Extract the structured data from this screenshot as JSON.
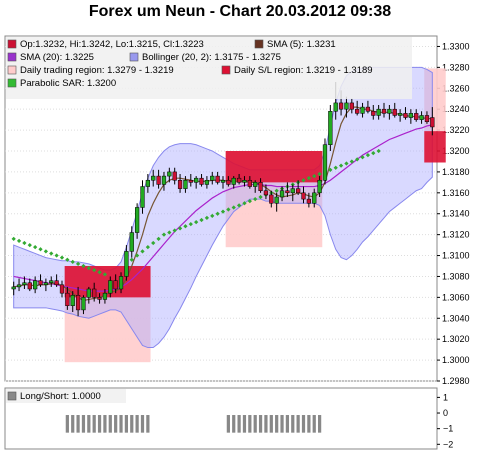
{
  "chart_data": [
    {
      "type": "candlestick",
      "title": "Forex um Neun - Chart 20.03.2012 09:38",
      "ylim": [
        1.298,
        1.331
      ],
      "y_ticks": [
        "1.3300",
        "1.3280",
        "1.3260",
        "1.3240",
        "1.3220",
        "1.3200",
        "1.3180",
        "1.3160",
        "1.3140",
        "1.3120",
        "1.3100",
        "1.3080",
        "1.3060",
        "1.3040",
        "1.3020",
        "1.3000",
        "1.2980"
      ],
      "y_tick_values": [
        1.33,
        1.328,
        1.326,
        1.324,
        1.322,
        1.32,
        1.318,
        1.316,
        1.314,
        1.312,
        1.31,
        1.308,
        1.306,
        1.304,
        1.302,
        1.3,
        1.298
      ],
      "grid": true,
      "legend_position": "top-left",
      "legend": [
        {
          "label": "Op:1.3232, Hi:1.3242, Lo:1.3215, Cl:1.3223",
          "color": "#cc1133"
        },
        {
          "label": "SMA (5): 1.3231",
          "color": "#663322"
        },
        {
          "label": "SMA (20): 1.3225",
          "color": "#9933cc"
        },
        {
          "label": "Bollinger (20, 2): 1.3175 - 1.3275",
          "color": "#9999ee"
        },
        {
          "label": "Daily trading region: 1.3279 - 1.3219",
          "color": "#ffcccc"
        },
        {
          "label": "Daily S/L region: 1.3219 - 1.3189",
          "color": "#dd1133"
        },
        {
          "label": "Parabolic SAR: 1.3200",
          "color": "#33bb33"
        }
      ],
      "candles": [
        [
          1.3068,
          1.3075,
          1.3062,
          1.307
        ],
        [
          1.307,
          1.3078,
          1.3066,
          1.3072
        ],
        [
          1.3072,
          1.308,
          1.3068,
          1.3074
        ],
        [
          1.3074,
          1.3078,
          1.3066,
          1.3068
        ],
        [
          1.3068,
          1.308,
          1.3064,
          1.3076
        ],
        [
          1.3076,
          1.3082,
          1.307,
          1.3072
        ],
        [
          1.3072,
          1.3078,
          1.3066,
          1.3074
        ],
        [
          1.3074,
          1.308,
          1.307,
          1.3076
        ],
        [
          1.3076,
          1.3082,
          1.307,
          1.3072
        ],
        [
          1.3072,
          1.3076,
          1.306,
          1.3064
        ],
        [
          1.3064,
          1.307,
          1.3048,
          1.3052
        ],
        [
          1.3052,
          1.3066,
          1.3046,
          1.3062
        ],
        [
          1.3062,
          1.307,
          1.3042,
          1.3048
        ],
        [
          1.3048,
          1.3062,
          1.3044,
          1.306
        ],
        [
          1.306,
          1.307,
          1.3054,
          1.3068
        ],
        [
          1.3068,
          1.3074,
          1.3056,
          1.306
        ],
        [
          1.306,
          1.3064,
          1.3054,
          1.3058
        ],
        [
          1.3058,
          1.3068,
          1.3054,
          1.3064
        ],
        [
          1.3064,
          1.308,
          1.306,
          1.3076
        ],
        [
          1.3076,
          1.3082,
          1.3064,
          1.3068
        ],
        [
          1.3068,
          1.3084,
          1.3064,
          1.308
        ],
        [
          1.308,
          1.311,
          1.3076,
          1.3104
        ],
        [
          1.3104,
          1.3128,
          1.3098,
          1.3122
        ],
        [
          1.3122,
          1.315,
          1.3116,
          1.3146
        ],
        [
          1.3146,
          1.3172,
          1.314,
          1.3166
        ],
        [
          1.3166,
          1.3178,
          1.316,
          1.3172
        ],
        [
          1.3172,
          1.3182,
          1.3166,
          1.3176
        ],
        [
          1.3176,
          1.3182,
          1.3164,
          1.3168
        ],
        [
          1.3168,
          1.318,
          1.3162,
          1.3176
        ],
        [
          1.3176,
          1.3184,
          1.317,
          1.318
        ],
        [
          1.318,
          1.3184,
          1.3168,
          1.3172
        ],
        [
          1.3172,
          1.3178,
          1.316,
          1.3164
        ],
        [
          1.3164,
          1.3176,
          1.316,
          1.3172
        ],
        [
          1.3172,
          1.3178,
          1.3166,
          1.317
        ],
        [
          1.317,
          1.3176,
          1.3164,
          1.3174
        ],
        [
          1.3174,
          1.3178,
          1.3166,
          1.3168
        ],
        [
          1.3168,
          1.3176,
          1.3164,
          1.3172
        ],
        [
          1.3172,
          1.318,
          1.3168,
          1.3176
        ],
        [
          1.3176,
          1.318,
          1.3168,
          1.317
        ],
        [
          1.317,
          1.3176,
          1.3164,
          1.3172
        ],
        [
          1.3172,
          1.3176,
          1.3166,
          1.3168
        ],
        [
          1.3168,
          1.3176,
          1.3164,
          1.3174
        ],
        [
          1.3174,
          1.3178,
          1.3168,
          1.317
        ],
        [
          1.317,
          1.3176,
          1.3166,
          1.3172
        ],
        [
          1.3172,
          1.3176,
          1.3164,
          1.3166
        ],
        [
          1.3166,
          1.3172,
          1.316,
          1.317
        ],
        [
          1.317,
          1.3174,
          1.316,
          1.3162
        ],
        [
          1.3162,
          1.3168,
          1.3154,
          1.3158
        ],
        [
          1.3158,
          1.3162,
          1.3146,
          1.315
        ],
        [
          1.315,
          1.316,
          1.3142,
          1.3156
        ],
        [
          1.3156,
          1.3166,
          1.3152,
          1.3162
        ],
        [
          1.3162,
          1.317,
          1.3156,
          1.316
        ],
        [
          1.316,
          1.3168,
          1.3152,
          1.3164
        ],
        [
          1.3164,
          1.3172,
          1.3158,
          1.316
        ],
        [
          1.316,
          1.3166,
          1.315,
          1.3154
        ],
        [
          1.3154,
          1.316,
          1.3146,
          1.315
        ],
        [
          1.315,
          1.3164,
          1.3146,
          1.316
        ],
        [
          1.316,
          1.3176,
          1.3156,
          1.3172
        ],
        [
          1.3172,
          1.3212,
          1.3168,
          1.3206
        ],
        [
          1.3206,
          1.3244,
          1.32,
          1.3238
        ],
        [
          1.3238,
          1.3266,
          1.323,
          1.3246
        ],
        [
          1.3246,
          1.3258,
          1.3234,
          1.324
        ],
        [
          1.324,
          1.3252,
          1.3232,
          1.3246
        ],
        [
          1.3246,
          1.325,
          1.3236,
          1.324
        ],
        [
          1.324,
          1.3248,
          1.3234,
          1.3236
        ],
        [
          1.3236,
          1.3246,
          1.3232,
          1.3242
        ],
        [
          1.3242,
          1.3248,
          1.3236,
          1.3238
        ],
        [
          1.3238,
          1.3244,
          1.323,
          1.3234
        ],
        [
          1.3234,
          1.3244,
          1.323,
          1.324
        ],
        [
          1.324,
          1.3246,
          1.3232,
          1.3236
        ],
        [
          1.3236,
          1.3244,
          1.323,
          1.324
        ],
        [
          1.324,
          1.3246,
          1.3232,
          1.3234
        ],
        [
          1.3234,
          1.324,
          1.3228,
          1.3236
        ],
        [
          1.3236,
          1.3242,
          1.323,
          1.3232
        ],
        [
          1.3232,
          1.324,
          1.3226,
          1.3236
        ],
        [
          1.3236,
          1.324,
          1.3228,
          1.323
        ],
        [
          1.323,
          1.3238,
          1.3226,
          1.3234
        ],
        [
          1.3234,
          1.3238,
          1.3226,
          1.3228
        ],
        [
          1.3232,
          1.3242,
          1.3215,
          1.3223
        ]
      ],
      "sma5": [
        1.307,
        1.3071,
        1.3072,
        1.3072,
        1.3071,
        1.3072,
        1.3072,
        1.3073,
        1.3074,
        1.3071,
        1.3068,
        1.3064,
        1.306,
        1.3057,
        1.3058,
        1.3059,
        1.306,
        1.3062,
        1.3065,
        1.3066,
        1.3069,
        1.3078,
        1.309,
        1.3104,
        1.312,
        1.3138,
        1.315,
        1.316,
        1.3168,
        1.3172,
        1.3174,
        1.3174,
        1.3173,
        1.3172,
        1.3171,
        1.3171,
        1.3171,
        1.3172,
        1.3172,
        1.3172,
        1.3171,
        1.3171,
        1.3171,
        1.3171,
        1.317,
        1.317,
        1.3168,
        1.3165,
        1.3161,
        1.3158,
        1.3156,
        1.3157,
        1.3158,
        1.316,
        1.3159,
        1.3157,
        1.3156,
        1.316,
        1.317,
        1.3188,
        1.3208,
        1.3226,
        1.3236,
        1.3242,
        1.3242,
        1.324,
        1.324,
        1.3238,
        1.3237,
        1.3237,
        1.3237,
        1.3236,
        1.3235,
        1.3234,
        1.3233,
        1.3233,
        1.3232,
        1.3231,
        1.3231
      ],
      "sma20": [
        1.308,
        1.3079,
        1.3078,
        1.3077,
        1.3076,
        1.3075,
        1.3074,
        1.3073,
        1.3072,
        1.3071,
        1.307,
        1.3069,
        1.3068,
        1.3067,
        1.3066,
        1.3066,
        1.3066,
        1.3066,
        1.3067,
        1.3068,
        1.307,
        1.3073,
        1.3077,
        1.3082,
        1.3087,
        1.3093,
        1.3099,
        1.3105,
        1.3111,
        1.3117,
        1.3123,
        1.3128,
        1.3133,
        1.3138,
        1.3143,
        1.3147,
        1.3151,
        1.3155,
        1.3158,
        1.3161,
        1.3163,
        1.3165,
        1.3166,
        1.3167,
        1.3168,
        1.3168,
        1.3168,
        1.3167,
        1.3167,
        1.3166,
        1.3166,
        1.3166,
        1.3166,
        1.3166,
        1.3166,
        1.3166,
        1.3166,
        1.3167,
        1.3169,
        1.3172,
        1.3176,
        1.318,
        1.3184,
        1.3188,
        1.3192,
        1.3196,
        1.3199,
        1.3202,
        1.3205,
        1.3208,
        1.3211,
        1.3213,
        1.3215,
        1.3217,
        1.3219,
        1.3221,
        1.3222,
        1.3224,
        1.3225
      ],
      "bb_upper": [
        1.311,
        1.3108,
        1.3106,
        1.3104,
        1.3102,
        1.31,
        1.3098,
        1.3097,
        1.3096,
        1.3095,
        1.3095,
        1.3094,
        1.3094,
        1.3093,
        1.3092,
        1.309,
        1.3088,
        1.3086,
        1.3086,
        1.3088,
        1.3094,
        1.3108,
        1.3124,
        1.3142,
        1.316,
        1.3174,
        1.3186,
        1.3194,
        1.32,
        1.3204,
        1.3206,
        1.3207,
        1.3207,
        1.3207,
        1.3206,
        1.3204,
        1.3202,
        1.32,
        1.3197,
        1.3194,
        1.3191,
        1.3188,
        1.3186,
        1.3184,
        1.3182,
        1.3182,
        1.3182,
        1.3182,
        1.3182,
        1.3182,
        1.3182,
        1.3182,
        1.3182,
        1.3182,
        1.3182,
        1.3182,
        1.3182,
        1.3186,
        1.32,
        1.3224,
        1.3246,
        1.3262,
        1.3272,
        1.3276,
        1.3278,
        1.3279,
        1.328,
        1.328,
        1.328,
        1.328,
        1.328,
        1.328,
        1.328,
        1.328,
        1.328,
        1.328,
        1.328,
        1.3278,
        1.3275
      ],
      "bb_lower": [
        1.305,
        1.305,
        1.305,
        1.305,
        1.305,
        1.305,
        1.305,
        1.3049,
        1.3048,
        1.3047,
        1.3045,
        1.3044,
        1.3042,
        1.3041,
        1.304,
        1.3042,
        1.3044,
        1.3046,
        1.3048,
        1.3048,
        1.3046,
        1.3038,
        1.303,
        1.3022,
        1.3014,
        1.3012,
        1.3012,
        1.3016,
        1.3022,
        1.303,
        1.304,
        1.3049,
        1.3059,
        1.3069,
        1.308,
        1.309,
        1.31,
        1.311,
        1.3119,
        1.3128,
        1.3135,
        1.3142,
        1.3146,
        1.315,
        1.3154,
        1.3154,
        1.3154,
        1.3152,
        1.3152,
        1.315,
        1.315,
        1.315,
        1.315,
        1.315,
        1.315,
        1.315,
        1.315,
        1.3148,
        1.3138,
        1.312,
        1.3106,
        1.3098,
        1.3096,
        1.31,
        1.3106,
        1.3113,
        1.3118,
        1.3124,
        1.313,
        1.3136,
        1.3142,
        1.3146,
        1.315,
        1.3154,
        1.3158,
        1.3162,
        1.3164,
        1.317,
        1.3175
      ],
      "sar": [
        1.3116,
        1.3114,
        1.3112,
        1.311,
        1.3108,
        1.3106,
        1.3104,
        1.3102,
        1.31,
        1.3098,
        1.3096,
        1.3094,
        1.3092,
        1.309,
        1.3088,
        1.3086,
        1.3084,
        1.3082,
        1.3084,
        1.3086,
        1.3088,
        1.3092,
        1.3096,
        1.31,
        1.3104,
        1.3108,
        1.3112,
        1.3116,
        1.312,
        1.3122,
        1.3124,
        1.3126,
        1.3128,
        1.313,
        1.3132,
        1.3134,
        1.3136,
        1.3138,
        1.314,
        1.3142,
        1.3144,
        1.3146,
        1.3148,
        1.315,
        1.3152,
        1.3154,
        1.3156,
        1.3158,
        1.316,
        1.3162,
        1.3164,
        1.3166,
        1.3168,
        1.317,
        1.3172,
        1.3174,
        1.3176,
        1.3178,
        1.318,
        1.3182,
        1.3184,
        1.3186,
        1.3188,
        1.319,
        1.3192,
        1.3194,
        1.3196,
        1.3198,
        1.32
      ],
      "sar_start_index": 0,
      "trading_regions": [
        {
          "from": 10,
          "to": 25,
          "top": 1.309,
          "bottom": 1.2998
        },
        {
          "from": 40,
          "to": 57,
          "top": 1.32,
          "bottom": 1.3108
        },
        {
          "from": 77,
          "to": 80,
          "top": 1.3279,
          "bottom": 1.3219
        }
      ],
      "sl_regions": [
        {
          "from": 10,
          "to": 25,
          "top": 1.309,
          "bottom": 1.306
        },
        {
          "from": 40,
          "to": 57,
          "top": 1.32,
          "bottom": 1.317
        },
        {
          "from": 77,
          "to": 80,
          "top": 1.3219,
          "bottom": 1.3189
        }
      ]
    },
    {
      "type": "bar",
      "legend": [
        {
          "label": "Long/Short: 1.0000",
          "color": "#888888"
        }
      ],
      "y_ticks": [
        "1",
        "0",
        "−1",
        "−2"
      ],
      "y_tick_values": [
        1,
        0,
        -1,
        -2
      ],
      "ylim": [
        -2.3,
        1.6
      ],
      "active_ranges": [
        [
          10,
          25
        ],
        [
          40,
          57
        ]
      ],
      "value": -1
    }
  ]
}
